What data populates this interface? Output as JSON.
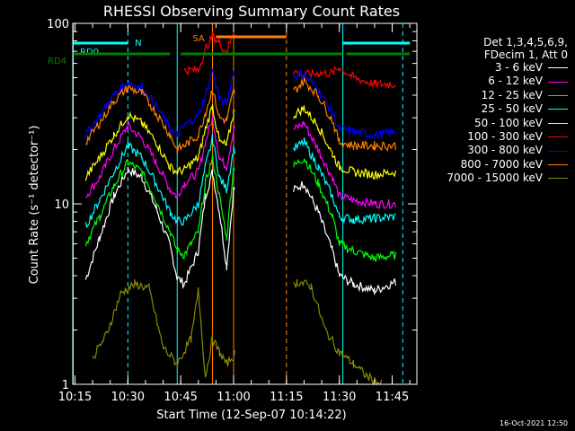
{
  "chart_data": {
    "type": "line",
    "title": "RHESSI Observing Summary Count Rates",
    "xlabel": "Start Time (12-Sep-07 10:14:22)",
    "ylabel": "Count Rate (s⁻¹ detector⁻¹)",
    "y_scale": "log",
    "ylim": [
      1,
      100
    ],
    "y_ticks": [
      1,
      10,
      100
    ],
    "y_tick_labels": [
      "1",
      "10",
      "100"
    ],
    "xlim": [
      "10:14:22",
      "11:52:00"
    ],
    "x_ticks": [
      "10:15",
      "10:30",
      "10:45",
      "11:00",
      "11:15",
      "11:30",
      "11:45"
    ],
    "legend_placement": "right-outside",
    "legend_header": [
      "Det 1,3,4,5,6,9,",
      "FDecim 1, Att 0"
    ],
    "series": [
      {
        "name": "3 - 6 keV",
        "color": "#ffffff",
        "x": [
          "10:18",
          "10:22",
          "10:26",
          "10:30",
          "10:34",
          "10:38",
          "10:42",
          "10:44",
          "10:46",
          "10:50",
          "10:52",
          "10:54",
          "10:56",
          "10:58",
          "11:00",
          "11:16",
          "11:20",
          "11:24",
          "11:28",
          "11:30",
          "11:34",
          "11:40",
          "11:46"
        ],
        "y": [
          3.8,
          6.5,
          11,
          15.5,
          14,
          9.5,
          5.8,
          3.9,
          3.6,
          5.5,
          11,
          15,
          9,
          4.5,
          12,
          11.5,
          13,
          9,
          5.5,
          4,
          3.6,
          3.3,
          3.7
        ]
      },
      {
        "name": "6 - 12 keV",
        "color": "#ff00ff",
        "x": [
          "10:18",
          "10:22",
          "10:26",
          "10:30",
          "10:34",
          "10:38",
          "10:42",
          "10:44",
          "10:46",
          "10:50",
          "10:52",
          "10:54",
          "10:56",
          "10:58",
          "11:00",
          "11:16",
          "11:20",
          "11:24",
          "11:28",
          "11:30",
          "11:34",
          "11:40",
          "11:46"
        ],
        "y": [
          11,
          14,
          20,
          27,
          23,
          17,
          12,
          11,
          13,
          15,
          22,
          30,
          18,
          16,
          26,
          25,
          28,
          20,
          14,
          11,
          10.5,
          10,
          10
        ]
      },
      {
        "name": "12 - 25 keV",
        "color": "#00ff00",
        "x": [
          "10:18",
          "10:22",
          "10:26",
          "10:30",
          "10:34",
          "10:38",
          "10:42",
          "10:44",
          "10:46",
          "10:50",
          "10:52",
          "10:54",
          "10:56",
          "10:58",
          "11:00",
          "11:16",
          "11:20",
          "11:24",
          "11:28",
          "11:30",
          "11:34",
          "11:40",
          "11:46"
        ],
        "y": [
          6,
          8.5,
          12.5,
          17,
          15,
          10.5,
          7,
          5.5,
          5.2,
          7,
          13,
          18,
          11,
          6.5,
          16,
          15.5,
          18,
          13,
          8.5,
          6,
          5.5,
          5,
          5.2
        ]
      },
      {
        "name": "25 - 50 keV",
        "color": "#00ffff",
        "x": [
          "10:18",
          "10:22",
          "10:26",
          "10:30",
          "10:34",
          "10:38",
          "10:42",
          "10:44",
          "10:46",
          "10:50",
          "10:52",
          "10:54",
          "10:56",
          "10:58",
          "11:00",
          "11:16",
          "11:20",
          "11:24",
          "11:28",
          "11:30",
          "11:34",
          "11:40",
          "11:46"
        ],
        "y": [
          7.5,
          10.5,
          15,
          21,
          18,
          13,
          9,
          8,
          8,
          10,
          16,
          23,
          14,
          12,
          20,
          19.5,
          22,
          16,
          11,
          8.5,
          8.2,
          8.3,
          8.5
        ]
      },
      {
        "name": "50 - 100 keV",
        "color": "#ffff00",
        "x": [
          "10:18",
          "10:22",
          "10:26",
          "10:30",
          "10:34",
          "10:38",
          "10:42",
          "10:44",
          "10:46",
          "10:50",
          "10:52",
          "10:54",
          "10:56",
          "10:58",
          "11:00",
          "11:16",
          "11:20",
          "11:24",
          "11:28",
          "11:30",
          "11:34",
          "11:40",
          "11:46"
        ],
        "y": [
          14,
          18,
          24,
          31,
          28,
          22,
          16,
          15,
          15.5,
          18,
          26,
          35,
          22,
          21,
          32,
          30,
          34,
          27,
          19,
          16,
          15,
          14.5,
          15
        ]
      },
      {
        "name": "100 - 300 keV",
        "color": "#ff0000",
        "x": [
          "10:46",
          "10:50",
          "10:52",
          "10:54",
          "10:56",
          "10:58",
          "11:00",
          "11:16",
          "11:20",
          "11:24",
          "11:28",
          "11:30",
          "11:34",
          "11:40",
          "11:46"
        ],
        "y": [
          55,
          55,
          72,
          85,
          78,
          69,
          90,
          55,
          52,
          53,
          53,
          57,
          50,
          46,
          46
        ]
      },
      {
        "name": "300 - 800 keV",
        "color": "#0000ff",
        "x": [
          "10:18",
          "10:22",
          "10:26",
          "10:30",
          "10:34",
          "10:38",
          "10:42",
          "10:44",
          "10:46",
          "10:50",
          "10:52",
          "10:54",
          "10:56",
          "10:58",
          "11:00",
          "11:16",
          "11:20",
          "11:24",
          "11:28",
          "11:30",
          "11:34",
          "11:40",
          "11:46"
        ],
        "y": [
          24,
          31,
          40,
          47,
          44,
          35,
          26,
          24,
          27,
          31,
          40,
          55,
          38,
          36,
          54,
          51,
          52,
          43,
          32,
          26,
          25,
          24,
          25
        ]
      },
      {
        "name": "800 - 7000 keV",
        "color": "#ff8000",
        "x": [
          "10:18",
          "10:22",
          "10:26",
          "10:30",
          "10:34",
          "10:38",
          "10:42",
          "10:44",
          "10:46",
          "10:50",
          "10:52",
          "10:54",
          "10:56",
          "10:58",
          "11:00",
          "11:16",
          "11:20",
          "11:24",
          "11:28",
          "11:30",
          "11:34",
          "11:40",
          "11:46"
        ],
        "y": [
          22,
          28,
          37,
          44,
          41,
          32,
          24,
          20,
          21,
          24,
          32,
          43,
          30,
          29,
          42,
          40,
          48,
          40,
          29,
          22,
          21,
          21,
          21
        ]
      },
      {
        "name": "7000 - 15000 keV",
        "color": "#8a8a00",
        "x": [
          "10:20",
          "10:24",
          "10:28",
          "10:32",
          "10:36",
          "10:40",
          "10:44",
          "10:48",
          "10:50",
          "10:52",
          "10:54",
          "10:56",
          "10:58",
          "11:18",
          "11:22",
          "11:26",
          "11:30",
          "11:34",
          "11:38",
          "11:42"
        ],
        "y": [
          1.4,
          1.9,
          3.2,
          3.6,
          3.4,
          1.6,
          1.3,
          1.8,
          3.3,
          1.1,
          1.8,
          1.5,
          1.3,
          3.7,
          3.5,
          2.0,
          1.5,
          1.3,
          1.1,
          1.0
        ]
      }
    ],
    "annotations": [
      {
        "label": "RD0",
        "color": "#00ffff",
        "type": "status-bar",
        "segments": [
          [
            "10:14:22",
            "10:30"
          ],
          [
            "11:31",
            "11:50"
          ]
        ]
      },
      {
        "label": "N",
        "color": "#00ffff",
        "type": "bar-label",
        "x": "10:32"
      },
      {
        "label": "RD4",
        "color": "#008000",
        "type": "status-bar",
        "segments": [
          [
            "10:14:22",
            "10:42"
          ],
          [
            "10:45",
            "11:15"
          ],
          [
            "11:15",
            "11:31"
          ],
          [
            "11:32",
            "11:50"
          ]
        ]
      },
      {
        "label": "SA",
        "color": "#ff8000",
        "type": "status-bar",
        "segments": [
          [
            "10:55",
            "11:15"
          ]
        ]
      }
    ],
    "vertical_markers": [
      {
        "x": "10:14:30",
        "color": "#00ffff",
        "style": "solid"
      },
      {
        "x": "10:30",
        "color": "#00ffff",
        "style": "dashed"
      },
      {
        "x": "10:44",
        "color": "#00ffff",
        "style": "solid"
      },
      {
        "x": "10:54",
        "color": "#ff8000",
        "style": "solid"
      },
      {
        "x": "11:00",
        "color": "#ff8000",
        "style": "solid"
      },
      {
        "x": "11:15",
        "color": "#ff8000",
        "style": "dashed"
      },
      {
        "x": "11:31",
        "color": "#00ffff",
        "style": "solid"
      },
      {
        "x": "11:48",
        "color": "#00ffff",
        "style": "dashed"
      }
    ],
    "gaps": [
      [
        "11:00:30",
        "11:17"
      ]
    ]
  },
  "footer_stamp": "16-Oct-2021 12:50"
}
